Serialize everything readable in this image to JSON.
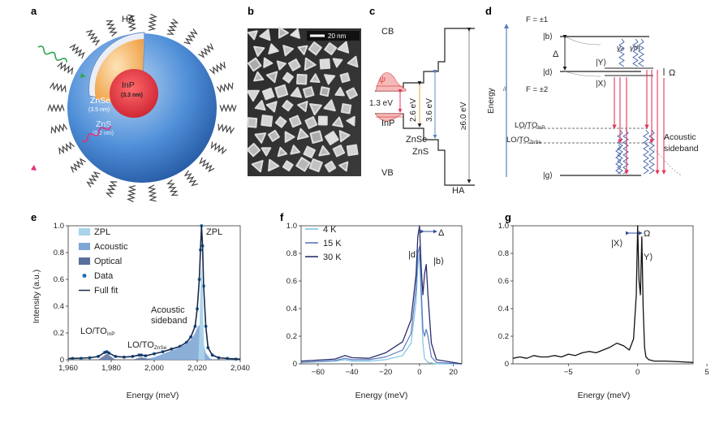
{
  "panels": {
    "a": {
      "label": "a",
      "ha": "HA",
      "inp": "InP",
      "inp_size": "(3.3 nm)",
      "znse": "ZnSe",
      "znse_size": "(3.5 nm)",
      "zns": "ZnS",
      "zns_size": "(0.2 nm)",
      "colors": {
        "inp": "#d8283a",
        "znse": "#f2a042",
        "zns": "#3f7fd0",
        "green_photon": "#2ea84f",
        "pink_photon": "#e0307a"
      }
    },
    "b": {
      "label": "b",
      "scalebar": "20 nm"
    },
    "c": {
      "label": "c",
      "cb": "CB",
      "vb": "VB",
      "psi": "ψ",
      "gap_inp": "1.3 eV",
      "gap_znse": "2.6 eV",
      "gap_zns": "3.6 eV",
      "gap_ha": "≥6.0 eV",
      "layer_inp": "InP",
      "layer_znse": "ZnSe",
      "layer_zns": "ZnS",
      "layer_ha": "HA"
    },
    "d": {
      "label": "d",
      "ylabel": "Energy",
      "f1": "F = ±1",
      "f2": "F = ±2",
      "state_b": "|b⟩",
      "state_d": "|d⟩",
      "state_y": "|Y⟩",
      "state_x": "|X⟩",
      "state_g": "|g⟩",
      "delta": "Δ",
      "omega": "Ω",
      "gamma0": "γ₀",
      "gammath": "γth",
      "lo_inp": "LO/TO",
      "lo_inp_sub": "InP",
      "lo_znse": "LO/TO",
      "lo_znse_sub": "ZnSe",
      "acoustic_1": "Acoustic",
      "acoustic_2": "sideband"
    },
    "e": {
      "label": "e",
      "xlabel": "Energy (meV)",
      "ylabel": "Intensity (a.u.)",
      "xticks": [
        "1,960",
        "1,980",
        "2,000",
        "2,020",
        "2,040"
      ],
      "yticks": [
        "0",
        "0.2",
        "0.4",
        "0.6",
        "0.8",
        "1.0"
      ],
      "legend": [
        "ZPL",
        "Acoustic",
        "Optical",
        "Data",
        "Full fit"
      ],
      "ann_zpl": "ZPL",
      "ann_acoustic_1": "Acoustic",
      "ann_acoustic_2": "sideband",
      "ann_lo_inp": "LO/TO",
      "ann_lo_inp_sub": "InP",
      "ann_lo_znse": "LO/TO",
      "ann_lo_znse_sub": "ZnSe"
    },
    "f": {
      "label": "f",
      "xlabel": "Energy (meV)",
      "xticks": [
        "−60",
        "−40",
        "−20",
        "0",
        "20"
      ],
      "yticks": [
        "0",
        "0.2",
        "0.4",
        "0.6",
        "0.8",
        "1.0"
      ],
      "legend": [
        "4 K",
        "15 K",
        "30 K"
      ],
      "ann_d": "|d⟩",
      "ann_b": "|b⟩",
      "ann_delta": "Δ"
    },
    "g": {
      "label": "g",
      "xlabel": "Energy (meV)",
      "xticks": [
        "−5",
        "0",
        "5"
      ],
      "yticks": [
        "0",
        "0.2",
        "0.4",
        "0.6",
        "0.8",
        "1.0"
      ],
      "ann_x": "|X⟩",
      "ann_y": "|Y⟩",
      "ann_omega": "Ω"
    }
  },
  "chart_data": [
    {
      "panel": "e",
      "type": "line",
      "xlabel": "Energy (meV)",
      "ylabel": "Intensity (a.u.)",
      "xlim": [
        1960,
        2040
      ],
      "ylim": [
        0,
        1.0
      ],
      "series": [
        {
          "name": "Data",
          "x": [
            1962,
            1966,
            1970,
            1974,
            1977,
            1978,
            1979,
            1982,
            1986,
            1990,
            1993,
            1994,
            1996,
            2000,
            2004,
            2008,
            2012,
            2015,
            2017,
            2019,
            2020,
            2021,
            2021.5,
            2022,
            2022.5,
            2023,
            2024,
            2025,
            2027,
            2030,
            2034,
            2038
          ],
          "y": [
            0.01,
            0.01,
            0.015,
            0.025,
            0.055,
            0.06,
            0.05,
            0.025,
            0.02,
            0.025,
            0.035,
            0.035,
            0.03,
            0.045,
            0.06,
            0.08,
            0.1,
            0.13,
            0.17,
            0.25,
            0.38,
            0.6,
            0.82,
            1.0,
            0.85,
            0.55,
            0.25,
            0.09,
            0.035,
            0.015,
            0.01,
            0.005
          ]
        },
        {
          "name": "Full fit",
          "x": [
            1960,
            1966,
            1970,
            1974,
            1977,
            1978,
            1979,
            1982,
            1986,
            1990,
            1993,
            1994,
            1996,
            2000,
            2004,
            2008,
            2012,
            2015,
            2017,
            2019,
            2020,
            2021,
            2021.5,
            2022,
            2022.5,
            2023,
            2024,
            2025,
            2027,
            2030,
            2034,
            2040
          ],
          "y": [
            0.01,
            0.012,
            0.015,
            0.025,
            0.055,
            0.06,
            0.05,
            0.025,
            0.02,
            0.025,
            0.035,
            0.035,
            0.03,
            0.045,
            0.06,
            0.08,
            0.1,
            0.13,
            0.17,
            0.25,
            0.38,
            0.6,
            0.82,
            1.0,
            0.85,
            0.55,
            0.25,
            0.09,
            0.035,
            0.015,
            0.01,
            0.005
          ]
        },
        {
          "name": "Acoustic",
          "x": [
            1995,
            2000,
            2005,
            2010,
            2014,
            2017,
            2019,
            2020,
            2021,
            2022,
            2023,
            2024,
            2026,
            2028
          ],
          "y": [
            0.0,
            0.02,
            0.05,
            0.08,
            0.11,
            0.15,
            0.2,
            0.24,
            0.26,
            0.22,
            0.12,
            0.05,
            0.01,
            0.0
          ]
        },
        {
          "name": "ZPL",
          "x": [
            2020.5,
            2021,
            2021.5,
            2022,
            2022.5,
            2023,
            2023.5
          ],
          "y": [
            0.0,
            0.2,
            0.55,
            0.72,
            0.55,
            0.2,
            0.0
          ]
        },
        {
          "name": "Optical",
          "x": [
            1974,
            1977,
            1978,
            1979,
            1982,
            1990,
            1993,
            1994,
            1996,
            1999
          ],
          "y": [
            0.0,
            0.035,
            0.045,
            0.035,
            0.0,
            0.0,
            0.015,
            0.018,
            0.012,
            0.0
          ]
        }
      ]
    },
    {
      "panel": "f",
      "type": "line",
      "xlabel": "Energy (meV)",
      "xlim": [
        -70,
        25
      ],
      "ylim": [
        0,
        1.0
      ],
      "series": [
        {
          "name": "4 K",
          "x": [
            -70,
            -50,
            -44,
            -40,
            -30,
            -20,
            -10,
            -5,
            -2,
            -1,
            0,
            1,
            2,
            3,
            5,
            10,
            25
          ],
          "y": [
            0.01,
            0.02,
            0.03,
            0.02,
            0.02,
            0.03,
            0.06,
            0.15,
            0.45,
            0.7,
            0.8,
            0.45,
            0.15,
            0.04,
            0.01,
            0.0,
            0.0
          ]
        },
        {
          "name": "15 K",
          "x": [
            -70,
            -50,
            -44,
            -40,
            -30,
            -20,
            -10,
            -5,
            -2,
            -1,
            0,
            1,
            2,
            3,
            4,
            5,
            7,
            10,
            25
          ],
          "y": [
            0.01,
            0.025,
            0.04,
            0.03,
            0.03,
            0.05,
            0.1,
            0.22,
            0.55,
            0.8,
            0.85,
            0.55,
            0.25,
            0.2,
            0.25,
            0.2,
            0.05,
            0.01,
            0.0
          ]
        },
        {
          "name": "30 K",
          "x": [
            -70,
            -50,
            -44,
            -40,
            -30,
            -20,
            -10,
            -5,
            -2,
            -1,
            0,
            1,
            2,
            3,
            4,
            5,
            7,
            10,
            25
          ],
          "y": [
            0.02,
            0.035,
            0.06,
            0.045,
            0.04,
            0.08,
            0.16,
            0.32,
            0.65,
            0.92,
            1.0,
            0.7,
            0.5,
            0.65,
            0.72,
            0.5,
            0.15,
            0.03,
            0.0
          ]
        }
      ]
    },
    {
      "panel": "g",
      "type": "line",
      "xlabel": "Energy (meV)",
      "xlim": [
        -9,
        4
      ],
      "ylim": [
        0,
        1.0
      ],
      "series": [
        {
          "name": "",
          "x": [
            -9,
            -8.5,
            -8,
            -7.5,
            -7,
            -6.5,
            -6,
            -5.5,
            -5,
            -4.5,
            -4,
            -3.5,
            -3,
            -2.5,
            -2,
            -1.5,
            -1,
            -0.6,
            -0.3,
            -0.1,
            0,
            0.1,
            0.2,
            0.3,
            0.4,
            0.5,
            0.6,
            0.8,
            1.2,
            2,
            3,
            4
          ],
          "y": [
            0.04,
            0.05,
            0.04,
            0.06,
            0.05,
            0.05,
            0.06,
            0.05,
            0.07,
            0.06,
            0.08,
            0.09,
            0.08,
            0.1,
            0.12,
            0.15,
            0.13,
            0.1,
            0.18,
            0.5,
            1.0,
            0.6,
            0.5,
            0.92,
            0.4,
            0.12,
            0.05,
            0.03,
            0.02,
            0.02,
            0.015,
            0.01
          ]
        }
      ]
    }
  ]
}
